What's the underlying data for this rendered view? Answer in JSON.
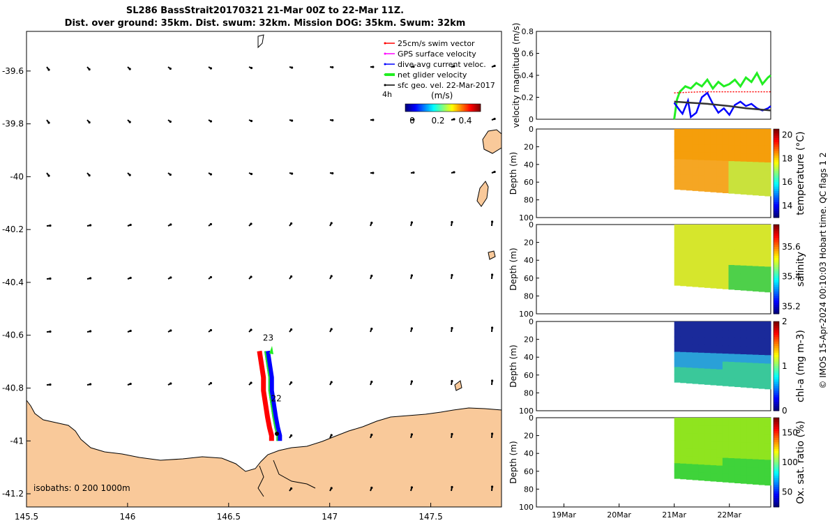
{
  "title_line1": "SL286 BassStrait20170321 21-Mar 00Z to 22-Mar 11Z.",
  "title_line2": "Dist. over ground: 35km. Dist. swum: 32km. Mission DOG: 35km. Swum: 32km",
  "credit": "© IMOS 15-Apr-2024 00:10:03 Hobart time. QC flags 1  2",
  "colors": {
    "land": "#f9c99a",
    "swim": "#ff0000",
    "gps": "#ff00ff",
    "dive": "#0000ff",
    "net": "#22ee22",
    "sfc": "#000000",
    "coast": "#000000"
  },
  "chart_data": [
    {
      "type": "scatter",
      "name": "map",
      "xticks": [
        "145.5",
        "146",
        "146.5",
        "147",
        "147.5"
      ],
      "yticks": [
        "-39.6",
        "-39.8",
        "-40",
        "-40.2",
        "-40.4",
        "-40.6",
        "-40.8",
        "-41",
        "-41.2"
      ],
      "xlim": [
        145.5,
        147.85
      ],
      "ylim": [
        -41.25,
        -39.45
      ],
      "legend": [
        "25cm/s swim vector",
        "GPS surface velocity",
        "dive-avg current veloc.",
        "net glider velocity",
        "sfc geo. vel. 22-Mar-2017"
      ],
      "colorbar_label_left": "4h",
      "colorbar_unit": "(m/s)",
      "colorbar_ticks": [
        "0",
        "0.2",
        "0.4"
      ],
      "colorbar_range": [
        0,
        0.5
      ],
      "day_labels": [
        {
          "text": "23",
          "lon": 146.69,
          "lat": -40.61
        },
        {
          "text": "22",
          "lon": 146.73,
          "lat": -40.84
        }
      ],
      "isobaths": "isobaths: 0   200  1000m",
      "track_lon": [
        146.68,
        146.69,
        146.7,
        146.7,
        146.71,
        146.72,
        146.73,
        146.74,
        146.74
      ],
      "track_lat": [
        -40.66,
        -40.71,
        -40.76,
        -40.81,
        -40.86,
        -40.91,
        -40.95,
        -40.98,
        -41.0
      ]
    },
    {
      "type": "line",
      "name": "velocity magnitude",
      "ylabel": "velocity magnitude (m/s)",
      "ylim": [
        0,
        0.8
      ],
      "yticks": [
        "0",
        "0.2",
        "0.4",
        "0.6",
        "0.8"
      ],
      "xlim": [
        18.5,
        22.75
      ],
      "xticks": [
        "19Mar",
        "20Mar",
        "21Mar",
        "22Mar"
      ],
      "series": [
        {
          "name": "net glider velocity",
          "color": "#22ee22",
          "x": [
            21.0,
            21.05,
            21.1,
            21.2,
            21.3,
            21.4,
            21.5,
            21.6,
            21.7,
            21.8,
            21.9,
            22.0,
            22.1,
            22.2,
            22.3,
            22.4,
            22.5,
            22.6,
            22.7,
            22.75
          ],
          "y": [
            0.0,
            0.18,
            0.25,
            0.3,
            0.28,
            0.33,
            0.3,
            0.36,
            0.28,
            0.34,
            0.3,
            0.32,
            0.36,
            0.3,
            0.38,
            0.34,
            0.42,
            0.32,
            0.38,
            0.4
          ]
        },
        {
          "name": "dive-avg current veloc.",
          "color": "#0000ff",
          "x": [
            21.0,
            21.1,
            21.15,
            21.25,
            21.3,
            21.4,
            21.5,
            21.6,
            21.7,
            21.8,
            21.9,
            22.0,
            22.1,
            22.2,
            22.3,
            22.4,
            22.5,
            22.6,
            22.7,
            22.75
          ],
          "y": [
            0.15,
            0.08,
            0.05,
            0.17,
            0.02,
            0.06,
            0.2,
            0.24,
            0.14,
            0.06,
            0.1,
            0.04,
            0.13,
            0.16,
            0.12,
            0.14,
            0.1,
            0.08,
            0.1,
            0.12
          ]
        },
        {
          "name": "swim vector",
          "color": "#ff0000",
          "x": [
            21.0,
            21.5,
            22.0,
            22.75
          ],
          "y": [
            0.24,
            0.25,
            0.25,
            0.25
          ]
        },
        {
          "name": "sfc geo. vel.",
          "color": "#333333",
          "x": [
            21.0,
            21.3,
            21.6,
            22.0,
            22.3,
            22.75
          ],
          "y": [
            0.16,
            0.15,
            0.14,
            0.12,
            0.1,
            0.08
          ]
        }
      ]
    },
    {
      "type": "heatmap",
      "name": "temperature",
      "ylabel": "Depth (m)",
      "cbar_label": "temperature (°C)",
      "cbar_ticks": [
        "14",
        "16",
        "18",
        "20"
      ],
      "clim": [
        13,
        20.5
      ],
      "ylim": [
        100,
        0
      ],
      "yticks": [
        "0",
        "20",
        "40",
        "60",
        "80",
        "100"
      ]
    },
    {
      "type": "heatmap",
      "name": "salinity",
      "ylabel": "Depth (m)",
      "cbar_label": "salinity",
      "cbar_ticks": [
        "35.2",
        "35.4",
        "35.6"
      ],
      "clim": [
        35.15,
        35.75
      ],
      "ylim": [
        100,
        0
      ],
      "yticks": [
        "0",
        "20",
        "40",
        "60",
        "80",
        "100"
      ]
    },
    {
      "type": "heatmap",
      "name": "chl-a",
      "ylabel": "Depth (m)",
      "cbar_label": "chl-a (mg m-3)",
      "cbar_ticks": [
        "0",
        "1",
        "2"
      ],
      "clim": [
        0,
        2
      ],
      "ylim": [
        100,
        0
      ],
      "yticks": [
        "0",
        "20",
        "40",
        "60",
        "80",
        "100"
      ]
    },
    {
      "type": "heatmap",
      "name": "oxygen",
      "ylabel": "Depth (m)",
      "cbar_label": "Ox. sat. ratio (%)",
      "cbar_ticks": [
        "50",
        "100",
        "150"
      ],
      "clim": [
        25,
        175
      ],
      "ylim": [
        100,
        0
      ],
      "yticks": [
        "0",
        "20",
        "40",
        "60",
        "80",
        "100"
      ]
    }
  ]
}
